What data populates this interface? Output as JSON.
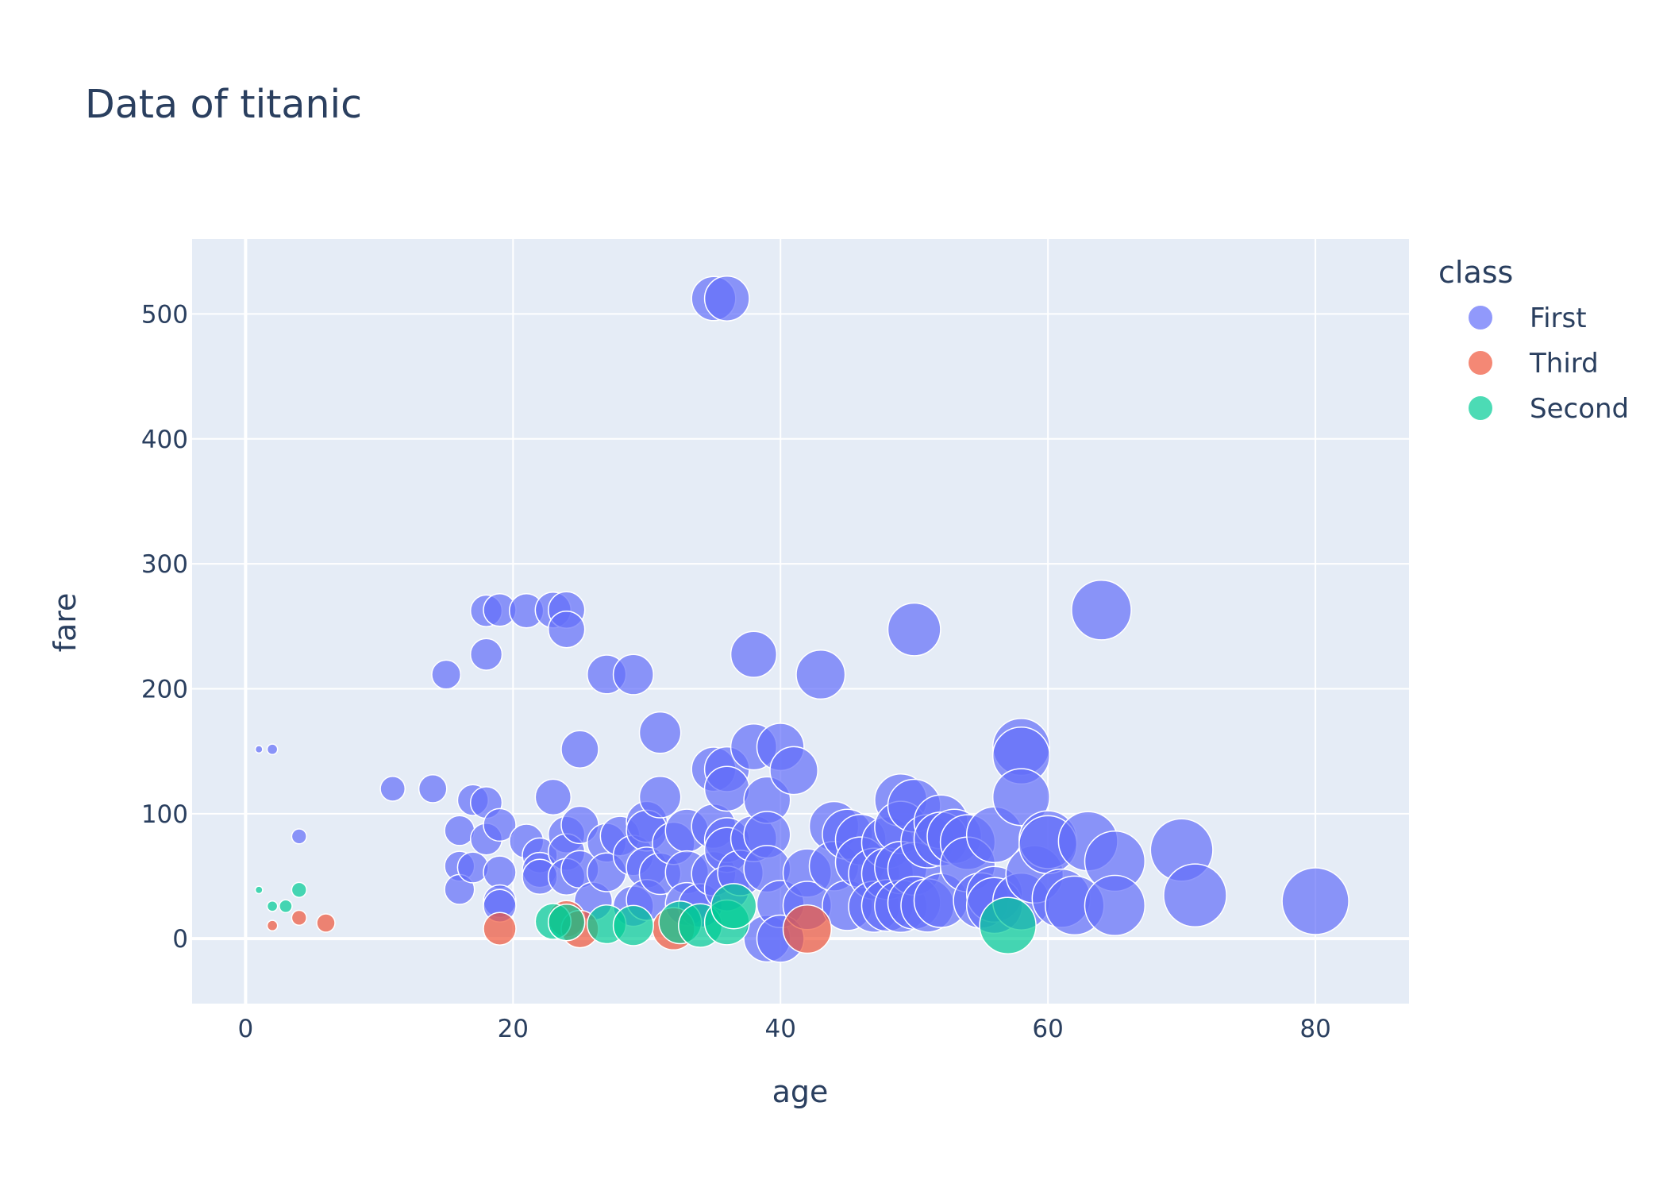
{
  "chart_data": {
    "type": "scatter",
    "title": "Data of titanic",
    "xlabel": "age",
    "ylabel": "fare",
    "xlim": [
      -4,
      87
    ],
    "ylim": [
      -52,
      560
    ],
    "xticks": [
      0,
      20,
      40,
      60,
      80
    ],
    "yticks": [
      0,
      100,
      200,
      300,
      400,
      500
    ],
    "grid": true,
    "legend_title": "class",
    "legend_position": "top-right",
    "size_encodes": "age",
    "series": [
      {
        "name": "First",
        "color": "#636efa",
        "points": [
          [
            1,
            151.55
          ],
          [
            2,
            151.55
          ],
          [
            4,
            81.86
          ],
          [
            11,
            120
          ],
          [
            14,
            120
          ],
          [
            15,
            211.34
          ],
          [
            16,
            86.5
          ],
          [
            16,
            57.98
          ],
          [
            16,
            39.4
          ],
          [
            17,
            110.88
          ],
          [
            17,
            57
          ],
          [
            18,
            262.38
          ],
          [
            18,
            227.53
          ],
          [
            18,
            108.9
          ],
          [
            18,
            79.65
          ],
          [
            19,
            263
          ],
          [
            19,
            91.08
          ],
          [
            19,
            53.1
          ],
          [
            19,
            30
          ],
          [
            19,
            26.28
          ],
          [
            21,
            262.38
          ],
          [
            21,
            77.96
          ],
          [
            22,
            66.6
          ],
          [
            22,
            55
          ],
          [
            22,
            49.5
          ],
          [
            23,
            263
          ],
          [
            23,
            113.28
          ],
          [
            24,
            263
          ],
          [
            24,
            247.52
          ],
          [
            24,
            83.16
          ],
          [
            24,
            69.3
          ],
          [
            24,
            49.5
          ],
          [
            25,
            151.55
          ],
          [
            25,
            91.08
          ],
          [
            25,
            55.44
          ],
          [
            26,
            30
          ],
          [
            27,
            211.5
          ],
          [
            27,
            76.73
          ],
          [
            27,
            53.1
          ],
          [
            28,
            82.17
          ],
          [
            29,
            211.34
          ],
          [
            29,
            66.6
          ],
          [
            29,
            26
          ],
          [
            30,
            93.5
          ],
          [
            30,
            86.5
          ],
          [
            30,
            56.93
          ],
          [
            30,
            31
          ],
          [
            31,
            164.87
          ],
          [
            31,
            113.28
          ],
          [
            31,
            52
          ],
          [
            32,
            76.29
          ],
          [
            33,
            86.5
          ],
          [
            33,
            53.1
          ],
          [
            33,
            27.72
          ],
          [
            34,
            26.55
          ],
          [
            35,
            512.33
          ],
          [
            35,
            135.63
          ],
          [
            35,
            90
          ],
          [
            35,
            52
          ],
          [
            36,
            512.33
          ],
          [
            36,
            135.63
          ],
          [
            36,
            120
          ],
          [
            36,
            78.85
          ],
          [
            36,
            71
          ],
          [
            36,
            40.13
          ],
          [
            37,
            52.55
          ],
          [
            38,
            227.53
          ],
          [
            38,
            153.46
          ],
          [
            38,
            80
          ],
          [
            39,
            110.88
          ],
          [
            39,
            83.16
          ],
          [
            39,
            55.9
          ],
          [
            39,
            0
          ],
          [
            40,
            153.46
          ],
          [
            40,
            27.72
          ],
          [
            40,
            0
          ],
          [
            41,
            134.5
          ],
          [
            42,
            52.55
          ],
          [
            42,
            26.55
          ],
          [
            43,
            211.34
          ],
          [
            44,
            90
          ],
          [
            44,
            57.98
          ],
          [
            45,
            83.48
          ],
          [
            45,
            26.55
          ],
          [
            46,
            79.2
          ],
          [
            46,
            61.18
          ],
          [
            47,
            52
          ],
          [
            47,
            25.59
          ],
          [
            48,
            76.73
          ],
          [
            48,
            52
          ],
          [
            48,
            26.55
          ],
          [
            49,
            110.88
          ],
          [
            49,
            89.1
          ],
          [
            49,
            56.93
          ],
          [
            49,
            25.93
          ],
          [
            50,
            247.52
          ],
          [
            50,
            106.43
          ],
          [
            50,
            55.9
          ],
          [
            50,
            28.71
          ],
          [
            51,
            77.96
          ],
          [
            51,
            26.55
          ],
          [
            52,
            93.5
          ],
          [
            52,
            79.65
          ],
          [
            52,
            30.5
          ],
          [
            53,
            81.86
          ],
          [
            54,
            77.29
          ],
          [
            54,
            59.4
          ],
          [
            55,
            30.5
          ],
          [
            56,
            83.16
          ],
          [
            56,
            35.5
          ],
          [
            56,
            26.55
          ],
          [
            58,
            153.46
          ],
          [
            58,
            146.52
          ],
          [
            58,
            113.28
          ],
          [
            58,
            29.7
          ],
          [
            59,
            51.48
          ],
          [
            60,
            79.2
          ],
          [
            60,
            75.25
          ],
          [
            61,
            32.32
          ],
          [
            62,
            26.55
          ],
          [
            63,
            77.96
          ],
          [
            64,
            263
          ],
          [
            65,
            61.98
          ],
          [
            65,
            26.55
          ],
          [
            70,
            71
          ],
          [
            71,
            34.65
          ],
          [
            80,
            30
          ]
        ]
      },
      {
        "name": "Third",
        "color": "#ef553b",
        "points": [
          [
            2,
            10.46
          ],
          [
            4,
            16.7
          ],
          [
            6,
            12.48
          ],
          [
            19,
            7.9
          ],
          [
            24,
            15.85
          ],
          [
            25,
            7.65
          ],
          [
            32,
            7.93
          ],
          [
            42,
            7.65
          ]
        ]
      },
      {
        "name": "Second",
        "color": "#00cc96",
        "points": [
          [
            1,
            39
          ],
          [
            2,
            26
          ],
          [
            3,
            26
          ],
          [
            4,
            39
          ],
          [
            23,
            13.79
          ],
          [
            24,
            13
          ],
          [
            27,
            11.5
          ],
          [
            29,
            10.5
          ],
          [
            32.5,
            13
          ],
          [
            34,
            10.5
          ],
          [
            36,
            13
          ],
          [
            36.5,
            26
          ],
          [
            57,
            10.5
          ]
        ]
      }
    ]
  }
}
